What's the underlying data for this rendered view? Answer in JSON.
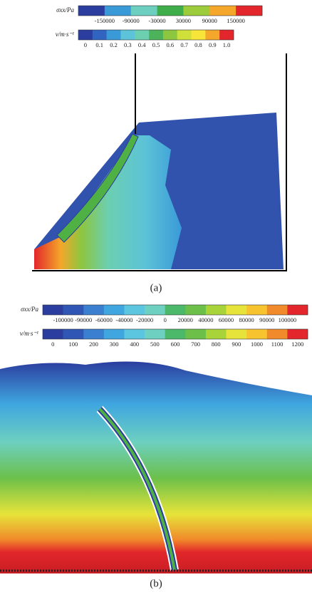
{
  "panels": [
    {
      "colorbars": [
        {
          "label": "σxx/Pa",
          "ticks": [
            "-150000",
            "-90000",
            "-30000",
            "30000",
            "90000",
            "150000"
          ],
          "colors": [
            "#2b3d9e",
            "#3a9ad8",
            "#6ccfc0",
            "#3fae4a",
            "#9ccc3c",
            "#f4a72a",
            "#e2262b"
          ]
        },
        {
          "label": "v/m·s⁻¹",
          "ticks": [
            "0",
            "0.1",
            "0.2",
            "0.3",
            "0.4",
            "0.5",
            "0.6",
            "0.7",
            "0.8",
            "0.9",
            "1.0"
          ],
          "colors": [
            "#2b3d9e",
            "#3164c0",
            "#3a9ad8",
            "#5cc3d8",
            "#6ccfb0",
            "#4db35a",
            "#8dc63f",
            "#cfe03a",
            "#f7e53a",
            "#f4a72a",
            "#e2262b"
          ]
        }
      ],
      "caption": "(a)"
    },
    {
      "colorbars": [
        {
          "label": "σxx/Pa",
          "ticks": [
            "-100000",
            "-90000",
            "-60000",
            "-40000",
            "-20000",
            "0",
            "20000",
            "40000",
            "60000",
            "80000",
            "90000",
            "100000"
          ],
          "colors": [
            "#2b3d9e",
            "#2f55b5",
            "#3a7fd0",
            "#3fa6e0",
            "#5cc6e0",
            "#6dd0c0",
            "#4bb86a",
            "#6cc04a",
            "#a8d43a",
            "#e6e43a",
            "#f7c430",
            "#f08a2a",
            "#e2262b"
          ]
        },
        {
          "label": "v/m·s⁻¹",
          "ticks": [
            "0",
            "100",
            "200",
            "300",
            "400",
            "500",
            "600",
            "700",
            "800",
            "900",
            "1000",
            "1100",
            "1200"
          ],
          "colors": [
            "#2b3d9e",
            "#2f55b5",
            "#3a7fd0",
            "#3fa6e0",
            "#5cc6e0",
            "#6dd0c0",
            "#4bb86a",
            "#6cc04a",
            "#a8d43a",
            "#e6e43a",
            "#f7c430",
            "#f08a2a",
            "#e2262b"
          ]
        }
      ],
      "caption": "(b)"
    }
  ]
}
